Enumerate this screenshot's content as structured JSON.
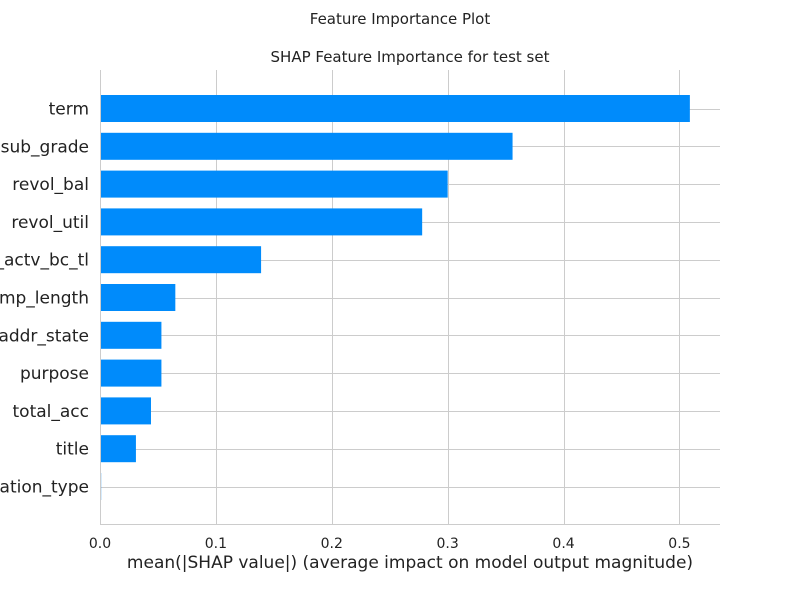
{
  "figure_title": "Feature Importance Plot",
  "colors": {
    "bar": "#008bfb",
    "grid": "#cccccc",
    "text": "#222222",
    "axis": "#cccccc"
  },
  "chart_data": {
    "type": "bar",
    "orientation": "horizontal",
    "title": "SHAP Feature Importance for test set",
    "xlabel": "mean(|SHAP value|) (average impact on model output magnitude)",
    "ylabel": "",
    "categories": [
      "term",
      "sub_grade",
      "revol_bal",
      "revol_util",
      "_actv_bc_tl",
      "emp_length",
      "addr_state",
      "purpose",
      "total_acc",
      "title",
      "cation_type"
    ],
    "values": [
      0.509,
      0.356,
      0.3,
      0.278,
      0.139,
      0.065,
      0.053,
      0.053,
      0.044,
      0.031,
      0.001
    ],
    "xlim": [
      0.0,
      0.535
    ],
    "xticks": [
      0.0,
      0.1,
      0.2,
      0.3,
      0.4,
      0.5
    ],
    "xtick_labels": [
      "0.0",
      "0.1",
      "0.2",
      "0.3",
      "0.4",
      "0.5"
    ],
    "grid": true,
    "legend": "none"
  }
}
